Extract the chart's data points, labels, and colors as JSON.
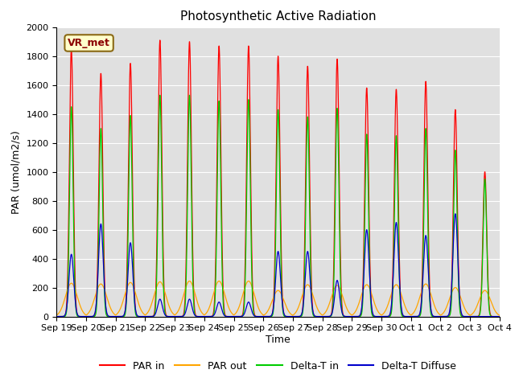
{
  "title": "Photosynthetic Active Radiation",
  "ylabel": "PAR (umol/m2/s)",
  "xlabel": "Time",
  "annotation": "VR_met",
  "x_tick_labels": [
    "Sep 19",
    "Sep 20",
    "Sep 21",
    "Sep 22",
    "Sep 23",
    "Sep 24",
    "Sep 25",
    "Sep 26",
    "Sep 27",
    "Sep 28",
    "Sep 29",
    "Sep 30",
    "Oct 1",
    "Oct 2",
    "Oct 3",
    "Oct 4"
  ],
  "ylim": [
    0,
    2000
  ],
  "bg_color": "#e0e0e0",
  "par_in_color": "#ff0000",
  "par_out_color": "#ffa500",
  "delta_t_in_color": "#00cc00",
  "delta_t_diffuse_color": "#0000cc",
  "num_days": 15,
  "par_in_peaks": [
    1850,
    1680,
    1750,
    1910,
    1900,
    1870,
    1870,
    1800,
    1730,
    1780,
    1580,
    1570,
    1625,
    1430,
    1000
  ],
  "par_out_peaks": [
    230,
    225,
    235,
    240,
    245,
    245,
    245,
    180,
    220,
    215,
    220,
    220,
    225,
    200,
    180
  ],
  "delta_t_in_peaks": [
    1450,
    1300,
    1390,
    1530,
    1530,
    1490,
    1500,
    1430,
    1380,
    1440,
    1260,
    1250,
    1300,
    1150,
    950
  ],
  "delta_t_diffuse_peaks": [
    430,
    640,
    510,
    120,
    120,
    100,
    100,
    450,
    450,
    250,
    600,
    650,
    560,
    710,
    0
  ],
  "points_per_day": 200
}
